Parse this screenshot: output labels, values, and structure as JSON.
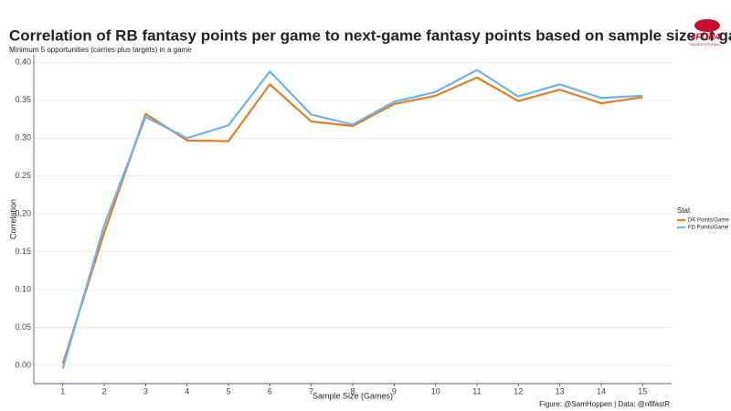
{
  "chart_data": {
    "type": "line",
    "title": "Correlation of RB fantasy points per game to next-game fantasy points based on sample size of games",
    "subtitle": "Minimum 5 opportunities (carries plus targets) in a game",
    "x_label": "Sample Size (Games)",
    "y_label": "Correlation",
    "caption": "Figure: @SamHoppen | Data: @nflfastR",
    "logo": {
      "text": "4FOR4",
      "subtitle": "FANTASY FOOTBALL"
    },
    "legend_title": "Stat",
    "legend_position": "right",
    "grid": true,
    "x": [
      1,
      2,
      3,
      4,
      5,
      6,
      7,
      8,
      9,
      10,
      11,
      12,
      13,
      14,
      15
    ],
    "xlim": [
      0.3,
      15.7
    ],
    "xticks": [
      1,
      2,
      3,
      4,
      5,
      6,
      7,
      8,
      9,
      10,
      11,
      12,
      13,
      14,
      15
    ],
    "ylim": [
      -0.024,
      0.41
    ],
    "yticks": [
      {
        "value": 0,
        "label": "0.00"
      },
      {
        "value": 0.05,
        "label": "0.05"
      },
      {
        "value": 0.1,
        "label": "0.10"
      },
      {
        "value": 0.15,
        "label": "0.15"
      },
      {
        "value": 0.2,
        "label": "0.20"
      },
      {
        "value": 0.25,
        "label": "0.25"
      },
      {
        "value": 0.3,
        "label": "0.30"
      },
      {
        "value": 0.35,
        "label": "0.35"
      },
      {
        "value": 0.4,
        "label": "0.40"
      }
    ],
    "series": [
      {
        "name": "DK Points/Game",
        "color": "#e87d1e",
        "values": [
          0.002,
          0.175,
          0.332,
          0.297,
          0.296,
          0.371,
          0.322,
          0.316,
          0.345,
          0.356,
          0.38,
          0.349,
          0.364,
          0.346,
          0.354
        ]
      },
      {
        "name": "FD Points/Game",
        "color": "#6ab4ee",
        "values": [
          -0.004,
          0.185,
          0.328,
          0.3,
          0.317,
          0.388,
          0.331,
          0.318,
          0.348,
          0.361,
          0.39,
          0.355,
          0.371,
          0.353,
          0.356
        ]
      }
    ]
  }
}
